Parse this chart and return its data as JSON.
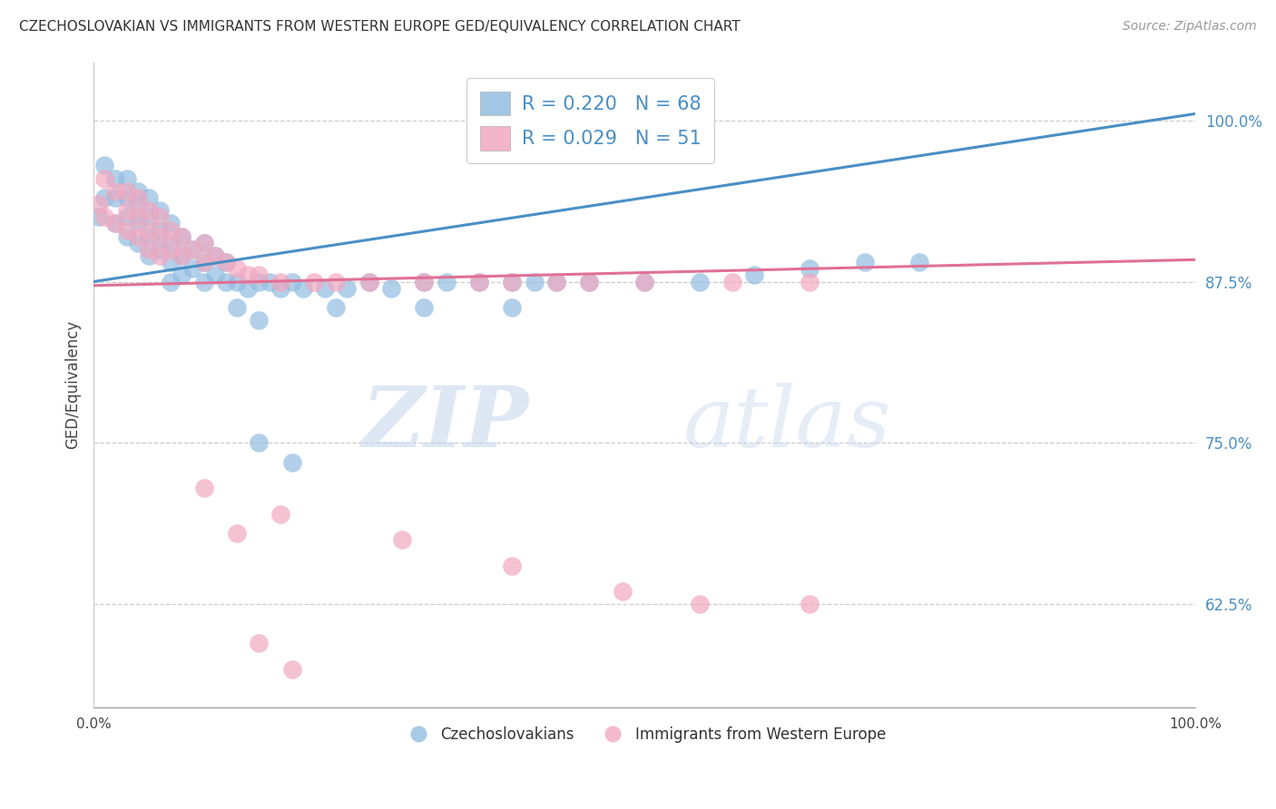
{
  "title": "CZECHOSLOVAKIAN VS IMMIGRANTS FROM WESTERN EUROPE GED/EQUIVALENCY CORRELATION CHART",
  "source": "Source: ZipAtlas.com",
  "ylabel": "GED/Equivalency",
  "yticks": [
    0.625,
    0.75,
    0.875,
    1.0
  ],
  "ytick_labels": [
    "62.5%",
    "75.0%",
    "87.5%",
    "100.0%"
  ],
  "xlim": [
    0.0,
    1.0
  ],
  "ylim": [
    0.545,
    1.045
  ],
  "blue_color": "#92bde0",
  "pink_color": "#f2a8c0",
  "blue_line_color": "#4a8fc4",
  "pink_line_color": "#e07095",
  "legend_label_blue": "R = 0.220   N = 68",
  "legend_label_pink": "R = 0.029   N = 51",
  "bottom_label_blue": "Czechoslovakians",
  "bottom_label_pink": "Immigrants from Western Europe",
  "blue_x": [
    0.005,
    0.01,
    0.01,
    0.02,
    0.02,
    0.02,
    0.03,
    0.03,
    0.03,
    0.03,
    0.04,
    0.04,
    0.04,
    0.04,
    0.05,
    0.05,
    0.05,
    0.05,
    0.06,
    0.06,
    0.06,
    0.07,
    0.07,
    0.07,
    0.07,
    0.08,
    0.08,
    0.08,
    0.09,
    0.09,
    0.1,
    0.1,
    0.1,
    0.11,
    0.11,
    0.12,
    0.12,
    0.13,
    0.14,
    0.15,
    0.16,
    0.17,
    0.18,
    0.19,
    0.21,
    0.23,
    0.25,
    0.27,
    0.3,
    0.32,
    0.35,
    0.38,
    0.4,
    0.42,
    0.45,
    0.5,
    0.55,
    0.6,
    0.65,
    0.7,
    0.13,
    0.15,
    0.22,
    0.3,
    0.38,
    0.15,
    0.18,
    0.75
  ],
  "blue_y": [
    0.925,
    0.965,
    0.94,
    0.955,
    0.94,
    0.92,
    0.955,
    0.94,
    0.925,
    0.91,
    0.945,
    0.935,
    0.92,
    0.905,
    0.94,
    0.925,
    0.91,
    0.895,
    0.93,
    0.915,
    0.9,
    0.92,
    0.905,
    0.89,
    0.875,
    0.91,
    0.895,
    0.88,
    0.9,
    0.885,
    0.905,
    0.89,
    0.875,
    0.895,
    0.88,
    0.89,
    0.875,
    0.875,
    0.87,
    0.875,
    0.875,
    0.87,
    0.875,
    0.87,
    0.87,
    0.87,
    0.875,
    0.87,
    0.875,
    0.875,
    0.875,
    0.875,
    0.875,
    0.875,
    0.875,
    0.875,
    0.875,
    0.88,
    0.885,
    0.89,
    0.855,
    0.845,
    0.855,
    0.855,
    0.855,
    0.75,
    0.735,
    0.89
  ],
  "pink_x": [
    0.005,
    0.01,
    0.01,
    0.02,
    0.02,
    0.03,
    0.03,
    0.03,
    0.04,
    0.04,
    0.04,
    0.05,
    0.05,
    0.05,
    0.06,
    0.06,
    0.06,
    0.07,
    0.07,
    0.08,
    0.08,
    0.09,
    0.1,
    0.1,
    0.11,
    0.12,
    0.13,
    0.14,
    0.15,
    0.17,
    0.2,
    0.22,
    0.25,
    0.3,
    0.35,
    0.38,
    0.42,
    0.45,
    0.5,
    0.58,
    0.65,
    0.1,
    0.17,
    0.28,
    0.38,
    0.48,
    0.55,
    0.65,
    0.13,
    0.15,
    0.18
  ],
  "pink_y": [
    0.935,
    0.955,
    0.925,
    0.945,
    0.92,
    0.945,
    0.93,
    0.915,
    0.94,
    0.925,
    0.91,
    0.93,
    0.915,
    0.9,
    0.925,
    0.91,
    0.895,
    0.915,
    0.9,
    0.91,
    0.895,
    0.9,
    0.905,
    0.89,
    0.895,
    0.89,
    0.885,
    0.88,
    0.88,
    0.875,
    0.875,
    0.875,
    0.875,
    0.875,
    0.875,
    0.875,
    0.875,
    0.875,
    0.875,
    0.875,
    0.875,
    0.715,
    0.695,
    0.675,
    0.655,
    0.635,
    0.625,
    0.625,
    0.68,
    0.595,
    0.575
  ]
}
